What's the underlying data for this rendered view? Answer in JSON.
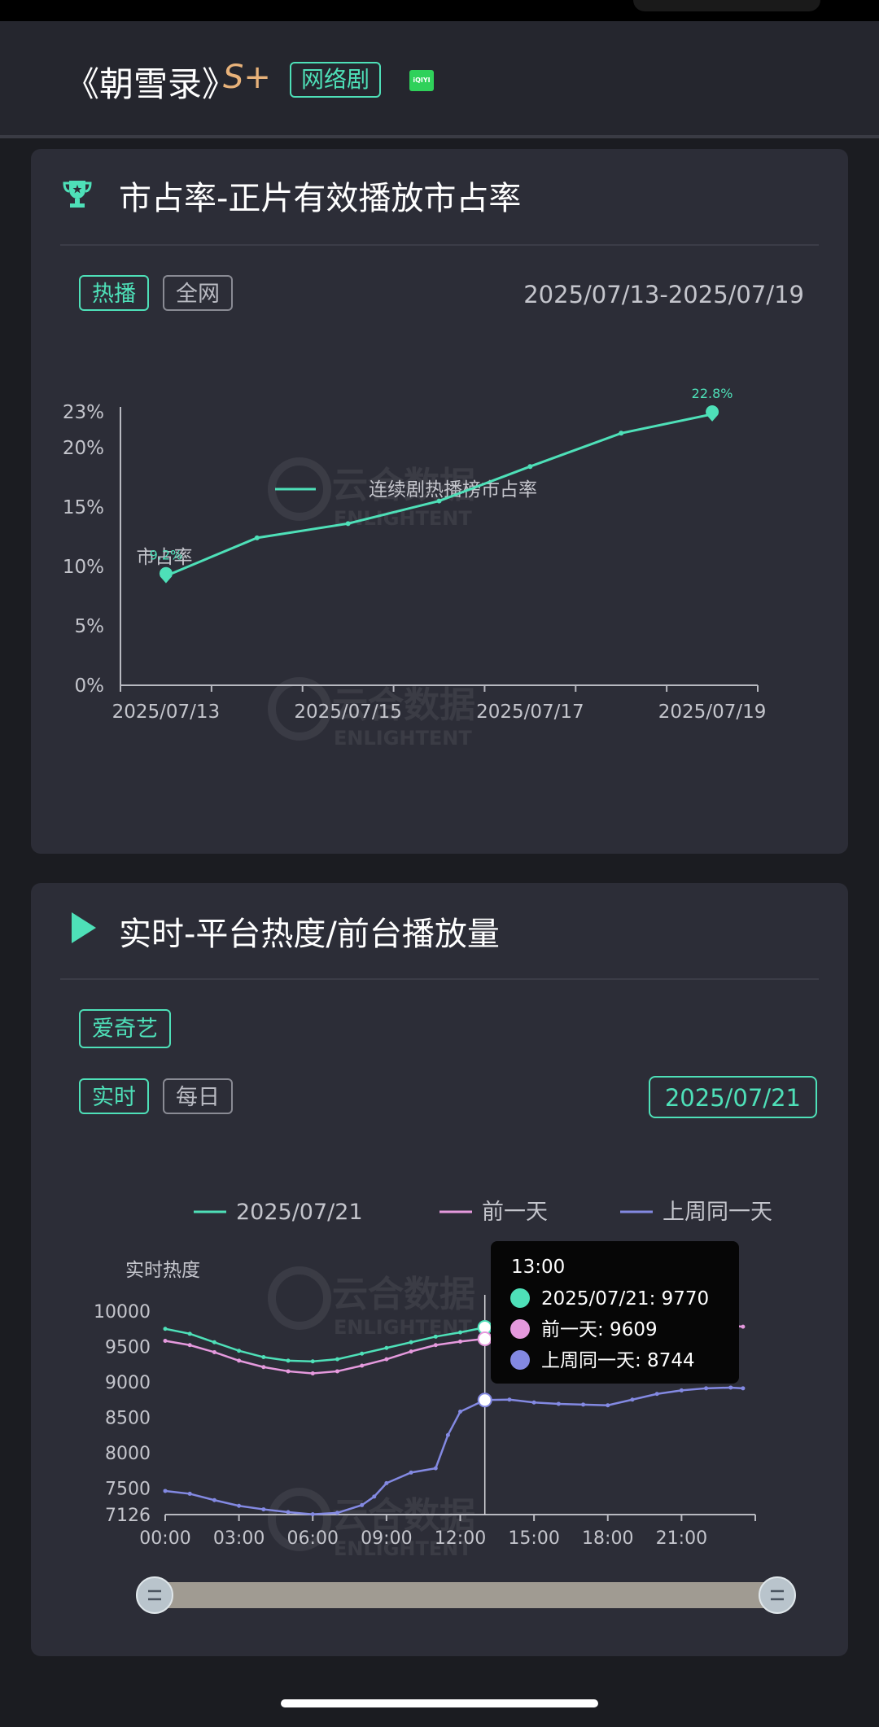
{
  "header": {
    "show_title": "《朝雪录》",
    "grade": "S+",
    "tag": "网络剧",
    "platform_icon_label": "iQIYI"
  },
  "market_share": {
    "title": "市占率-正片有效播放市占率",
    "filters": [
      "热播",
      "全网"
    ],
    "date_range": "2025/07/13-2025/07/19",
    "chart_data": {
      "type": "line",
      "ylabel": "市占率",
      "yticks": [
        "0%",
        "5%",
        "10%",
        "15%",
        "20%",
        "23%"
      ],
      "ylim": [
        0,
        23
      ],
      "x_ticks": [
        "2025/07/13",
        "2025/07/15",
        "2025/07/17",
        "2025/07/19"
      ],
      "categories": [
        "2025/07/13",
        "2025/07/14",
        "2025/07/15",
        "2025/07/16",
        "2025/07/17",
        "2025/07/18",
        "2025/07/19"
      ],
      "series": [
        {
          "name": "连续剧热播榜市占率",
          "values": [
            9.2,
            12.4,
            13.6,
            15.5,
            18.4,
            21.2,
            22.8
          ],
          "color": "#4ee0b8"
        }
      ],
      "data_labels": [
        {
          "index": 0,
          "text": "9.2%"
        },
        {
          "index": 6,
          "text": "22.8%"
        }
      ],
      "grid": false,
      "legend": "top-center"
    }
  },
  "realtime": {
    "title": "实时-平台热度/前台播放量",
    "platform": "爱奇艺",
    "modes": [
      "实时",
      "每日"
    ],
    "date": "2025/07/21",
    "chart_data": {
      "type": "line",
      "ylabel": "实时热度",
      "yticks": [
        7126,
        7500,
        8000,
        8500,
        9000,
        9500,
        10000
      ],
      "ylim": [
        7126,
        10000
      ],
      "x_ticks": [
        "00:00",
        "03:00",
        "06:00",
        "09:00",
        "12:00",
        "15:00",
        "18:00",
        "21:00"
      ],
      "x_range": [
        0,
        24
      ],
      "legend": "top-center",
      "series": [
        {
          "name": "2025/07/21",
          "color": "#4ee0b8",
          "x": [
            0,
            1,
            2,
            3,
            4,
            5,
            6,
            7,
            8,
            9,
            10,
            11,
            12,
            13
          ],
          "values": [
            9750,
            9680,
            9560,
            9440,
            9350,
            9300,
            9290,
            9320,
            9400,
            9480,
            9560,
            9640,
            9700,
            9770
          ]
        },
        {
          "name": "前一天",
          "color": "#e599dd",
          "x": [
            0,
            1,
            2,
            3,
            4,
            5,
            6,
            7,
            8,
            9,
            10,
            11,
            12,
            13,
            22.5,
            23.5
          ],
          "values": [
            9580,
            9520,
            9420,
            9300,
            9210,
            9150,
            9120,
            9150,
            9230,
            9320,
            9430,
            9520,
            9570,
            9609,
            9810,
            9780
          ]
        },
        {
          "name": "上周同一天",
          "color": "#8389e2",
          "x": [
            0,
            1,
            2,
            3,
            4,
            5,
            6,
            7,
            8,
            8.5,
            9,
            10,
            11,
            11.5,
            12,
            13,
            14,
            15,
            16,
            17,
            18,
            19,
            20,
            21,
            22,
            23,
            23.5
          ],
          "values": [
            7460,
            7420,
            7330,
            7250,
            7200,
            7160,
            7130,
            7150,
            7260,
            7380,
            7570,
            7720,
            7780,
            8250,
            8580,
            8744,
            8750,
            8710,
            8690,
            8680,
            8670,
            8750,
            8830,
            8880,
            8910,
            8920,
            8910
          ]
        }
      ],
      "tooltip": {
        "time": "13:00",
        "x": 13,
        "rows": [
          {
            "label": "2025/07/21: 9770",
            "color": "#4ee0b8",
            "value": 9770
          },
          {
            "label": "前一天: 9609",
            "color": "#e599dd",
            "value": 9609
          },
          {
            "label": "上周同一天: 8744",
            "color": "#8389e2",
            "value": 8744
          }
        ]
      }
    }
  },
  "watermark": {
    "text_cn": "云合数据",
    "text_en": "ENLIGHTENT"
  }
}
